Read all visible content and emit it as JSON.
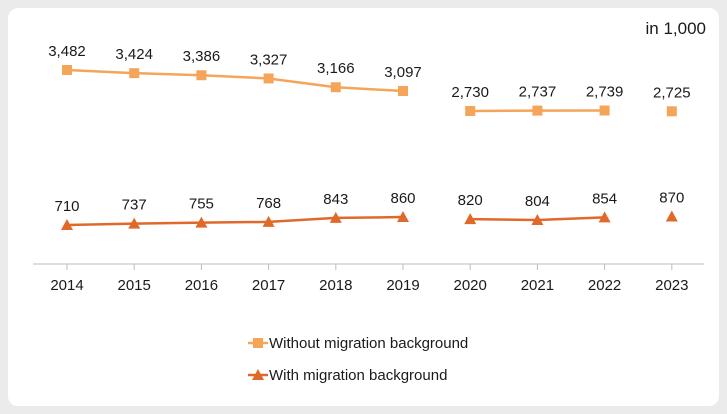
{
  "chart_data": {
    "type": "line",
    "unit_note": "in 1,000",
    "x": [
      "2014",
      "2015",
      "2016",
      "2017",
      "2018",
      "2019",
      "2020",
      "2021",
      "2022",
      "2023"
    ],
    "series": [
      {
        "name": "Without migration background",
        "values": [
          3482,
          3424,
          3386,
          3327,
          3166,
          3097,
          2730,
          2737,
          2739,
          2725
        ],
        "labels": [
          "3,482",
          "3,424",
          "3,386",
          "3,327",
          "3,166",
          "3,097",
          "2,730",
          "2,737",
          "2,739",
          "2,725"
        ],
        "color": "#f5a55a",
        "marker": "square",
        "segments": [
          [
            0,
            5
          ],
          [
            6,
            8
          ],
          [
            9,
            9
          ]
        ]
      },
      {
        "name": "With migration background",
        "values": [
          710,
          737,
          755,
          768,
          843,
          860,
          820,
          804,
          854,
          870
        ],
        "labels": [
          "710",
          "737",
          "755",
          "768",
          "843",
          "860",
          "820",
          "804",
          "854",
          "870"
        ],
        "color": "#e0692a",
        "marker": "triangle",
        "segments": [
          [
            0,
            5
          ],
          [
            6,
            8
          ],
          [
            9,
            9
          ]
        ]
      }
    ],
    "xlabel": "",
    "ylabel": "",
    "y_axis_visible": false,
    "grid": false,
    "legend_position": "bottom-center"
  }
}
